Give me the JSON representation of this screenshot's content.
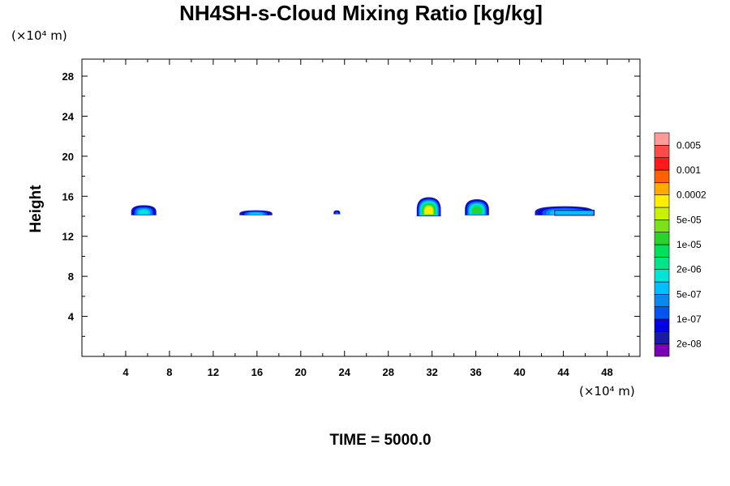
{
  "chart_data": {
    "type": "heatmap",
    "title": "NH4SH-s-Cloud Mixing Ratio [kg/kg]",
    "ylabel": "Height",
    "x_unit_label": "(×10⁴ m)",
    "y_unit_label": "(×10⁴ m)",
    "xlim": [
      0,
      51
    ],
    "ylim": [
      0,
      29.7
    ],
    "x_ticks": [
      4,
      8,
      12,
      16,
      20,
      24,
      28,
      32,
      36,
      40,
      44,
      48
    ],
    "y_ticks": [
      4,
      8,
      12,
      16,
      20,
      24,
      28
    ],
    "time_label": "TIME = 5000.0",
    "colorbar": {
      "colors": [
        "#7a00b8",
        "#1a1aa8",
        "#0000e6",
        "#0055ee",
        "#0a88f0",
        "#00bfff",
        "#00e5d5",
        "#00e58a",
        "#00e05a",
        "#2ad22a",
        "#7ae11a",
        "#c8f000",
        "#ffee00",
        "#ffaa00",
        "#ff6000",
        "#ff1a1a",
        "#ff4a4a",
        "#ff9a9a"
      ],
      "labels": [
        "2e-08",
        "1e-07",
        "5e-07",
        "2e-06",
        "1e-05",
        "5e-05",
        "0.0002",
        "0.001",
        "0.005"
      ]
    },
    "clouds": [
      {
        "x_min": 4.5,
        "x_max": 6.8,
        "z_base": 14.1,
        "z_top": 15.1,
        "peak_level": 6
      },
      {
        "x_min": 14.4,
        "x_max": 17.4,
        "z_base": 14.1,
        "z_top": 14.6,
        "peak_level": 5
      },
      {
        "x_min": 23.0,
        "x_max": 23.6,
        "z_base": 14.2,
        "z_top": 14.6,
        "peak_level": 3
      },
      {
        "x_min": 30.6,
        "x_max": 32.8,
        "z_base": 14.0,
        "z_top": 15.9,
        "peak_level": 12
      },
      {
        "x_min": 35.0,
        "x_max": 37.2,
        "z_base": 14.1,
        "z_top": 15.7,
        "peak_level": 9
      },
      {
        "x_min": 41.4,
        "x_max": 46.8,
        "z_base": 14.1,
        "z_top": 15.0,
        "peak_level": 6
      }
    ]
  }
}
